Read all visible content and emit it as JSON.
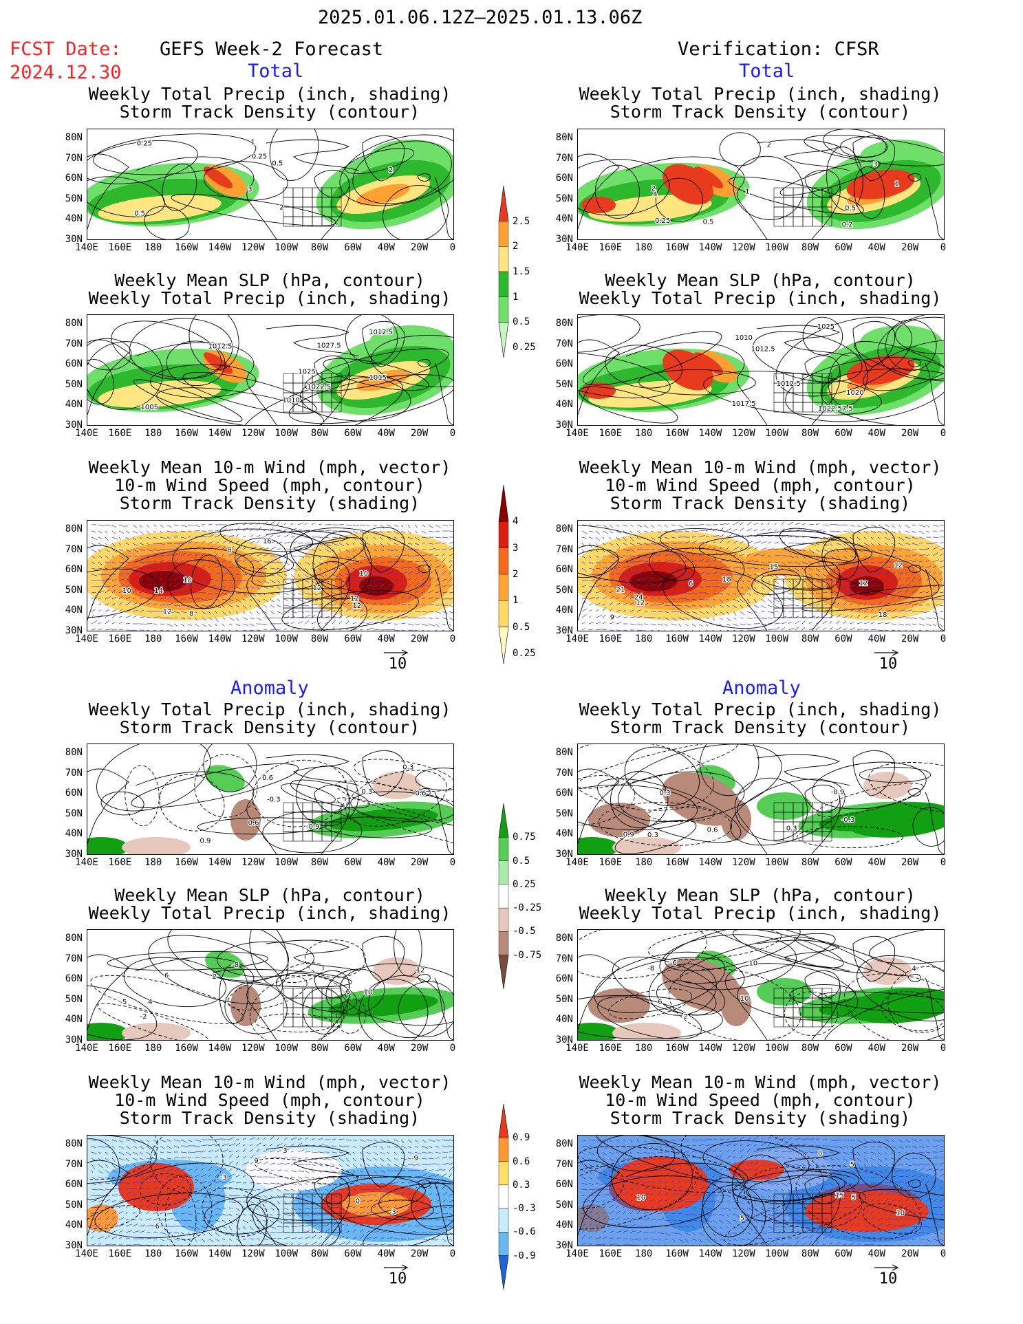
{
  "header": {
    "date_range": "2025.01.06.12Z–2025.01.13.06Z",
    "fcst_label": "FCST Date:",
    "fcst_date": "2024.12.30",
    "left_title": "GEFS Week-2 Forecast",
    "right_title": "Verification: CFSR"
  },
  "sections": {
    "total": "Total",
    "anomaly": "Anomaly"
  },
  "axes": {
    "y_ticks": [
      "80N",
      "70N",
      "60N",
      "50N",
      "40N",
      "30N"
    ],
    "x_ticks": [
      "140E",
      "160E",
      "180",
      "160W",
      "140W",
      "120W",
      "100W",
      "80W",
      "60W",
      "40W",
      "20W",
      "0"
    ]
  },
  "panels": [
    {
      "id": "p1",
      "title": [
        "Weekly Total Precip (inch, shading)",
        "Storm Track Density (contour)"
      ],
      "type": "precip_total",
      "labels": [
        "0.25",
        "0.5",
        "1",
        "2",
        "2",
        "3",
        "0.5",
        "0.25"
      ]
    },
    {
      "id": "p2",
      "title": [
        "Weekly Total Precip (inch, shading)",
        "Storm Track Density (contour)"
      ],
      "type": "precip_total",
      "labels": [
        "0.5",
        "0.25",
        "0.2",
        "1",
        "0.5",
        "2",
        "3",
        "4",
        "2",
        "1"
      ]
    },
    {
      "id": "p3",
      "title": [
        "Weekly Mean SLP (hPa, contour)",
        "Weekly Total Precip (inch, shading)"
      ],
      "type": "slp_total",
      "labels": [
        "1010",
        "1015",
        "1005",
        "1012.5",
        "1027.5",
        "1025",
        "1022.5",
        "1012.5"
      ]
    },
    {
      "id": "p4",
      "title": [
        "Weekly Mean SLP (hPa, contour)",
        "Weekly Total Precip (inch, shading)"
      ],
      "type": "slp_total",
      "labels": [
        "1020",
        "1012.5",
        "1017.5",
        "1022.57.5",
        "1012.5",
        "1025",
        "1010"
      ]
    },
    {
      "id": "p5",
      "title": [
        "Weekly Mean 10-m Wind (mph, vector)",
        "10-m Wind Speed (mph, contour)",
        "Storm Track Density (shading)"
      ],
      "type": "wind_total",
      "labels": [
        "10",
        "12",
        "12",
        "14",
        "16",
        "10",
        "10",
        "8",
        "8",
        "12",
        "12"
      ]
    },
    {
      "id": "p6",
      "title": [
        "Weekly Mean 10-m Wind (mph, vector)",
        "10-m Wind Speed (mph, contour)",
        "Storm Track Density (shading)"
      ],
      "type": "wind_total",
      "labels": [
        "6",
        "12",
        "12",
        "15",
        "18",
        "18",
        "9",
        "12",
        "24",
        "21"
      ]
    },
    {
      "id": "p7",
      "title": [
        "Weekly Total Precip (inch, shading)",
        "Storm Track Density (contour)"
      ],
      "type": "precip_anom",
      "labels": [
        "-0.3",
        "0.6",
        "0.6",
        "0.3",
        "0.9",
        "0.6",
        "0.3",
        "-0.9"
      ]
    },
    {
      "id": "p8",
      "title": [
        "Weekly Total Precip (inch, shading)",
        "Storm Track Density (contour)"
      ],
      "type": "precip_anom",
      "labels": [
        "-0.9",
        "0.3",
        "-0.3",
        "0.6",
        "0.3",
        "0.9",
        "0.3"
      ]
    },
    {
      "id": "p9",
      "title": [
        "Weekly Mean SLP (hPa, contour)",
        "Weekly Total Precip (inch, shading)"
      ],
      "type": "slp_anom",
      "labels": [
        "12",
        "10",
        "4",
        "-6",
        "-2",
        "6",
        "-8",
        "-5",
        "2"
      ]
    },
    {
      "id": "p10",
      "title": [
        "Weekly Mean SLP (hPa, contour)",
        "Weekly Total Precip (inch, shading)"
      ],
      "type": "slp_anom",
      "labels": [
        "-6",
        "10",
        "10",
        "-8",
        "4",
        "2",
        "6"
      ]
    },
    {
      "id": "p11",
      "title": [
        "Weekly Mean 10-m Wind (mph, vector)",
        "10-m Wind Speed (mph, contour)",
        "Storm Track Density (shading)"
      ],
      "type": "wind_anom",
      "labels": [
        "9",
        "6",
        "0",
        "3",
        "-3",
        "-3",
        "-9"
      ]
    },
    {
      "id": "p12",
      "title": [
        "Weekly Mean 10-m Wind (mph, vector)",
        "10-m Wind Speed (mph, contour)",
        "Storm Track Density (shading)"
      ],
      "type": "wind_anom",
      "labels": [
        "0",
        "5",
        "10",
        "10",
        "5",
        "5",
        "15"
      ]
    }
  ],
  "colorbars": {
    "precip_total": {
      "labels": [
        "0.25",
        "0.5",
        "1",
        "1.5",
        "2",
        "2.5"
      ],
      "colors": [
        "#c8f5c0",
        "#6ee06a",
        "#2eb82e",
        "#ffe680",
        "#ffa033",
        "#e83a1c"
      ]
    },
    "storm_total": {
      "labels": [
        "0.25",
        "0.5",
        "1",
        "2",
        "3",
        "4"
      ],
      "colors": [
        "#fff8c0",
        "#ffd966",
        "#ffa533",
        "#f26a1b",
        "#d92010",
        "#8b0000"
      ]
    },
    "precip_anom": {
      "labels": [
        "0.75",
        "0.5",
        "0.25",
        "-0.25",
        "-0.5",
        "-0.75"
      ],
      "colors": [
        "#11a011",
        "#55cc55",
        "#aaeaaa",
        "#ffffff",
        "#e7c8bc",
        "#b88a7a",
        "#7a4a3a"
      ]
    },
    "storm_anom": {
      "labels": [
        "0.9",
        "0.6",
        "0.3",
        "-0.3",
        "-0.6",
        "-0.9"
      ],
      "colors": [
        "#e83a1c",
        "#ff9933",
        "#ffe066",
        "#ffffff",
        "#c8ecfa",
        "#6ab8f0",
        "#1e64d8"
      ]
    }
  },
  "vector_ref": "10"
}
